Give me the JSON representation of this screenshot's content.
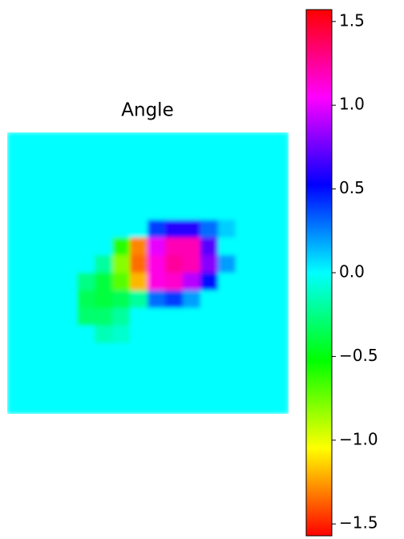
{
  "chart_data": {
    "type": "heatmap",
    "title": "Angle",
    "colormap": "hsv",
    "clim": [
      -1.5708,
      1.5708
    ],
    "cticks": [
      {
        "value": -1.5,
        "label": "−1.5"
      },
      {
        "value": -1.0,
        "label": "−1.0"
      },
      {
        "value": -0.5,
        "label": "−0.5"
      },
      {
        "value": 0.0,
        "label": "0.0"
      },
      {
        "value": 0.5,
        "label": "0.5"
      },
      {
        "value": 1.0,
        "label": "1.0"
      },
      {
        "value": 1.5,
        "label": "1.5"
      }
    ],
    "values": [
      [
        0,
        0,
        0,
        0,
        0,
        0,
        0,
        0,
        0,
        0,
        0,
        0,
        0,
        0,
        0,
        0
      ],
      [
        0,
        0,
        0,
        0,
        0,
        0,
        0,
        0,
        0,
        0,
        0,
        0,
        0,
        0,
        0,
        0
      ],
      [
        0,
        0,
        0,
        0,
        0,
        0,
        0,
        0,
        0,
        0,
        0,
        0,
        0,
        0,
        0,
        0
      ],
      [
        0,
        0,
        0,
        0,
        0,
        0,
        0,
        0,
        0,
        0,
        0,
        0,
        0,
        0,
        0,
        0
      ],
      [
        0,
        0,
        0,
        0,
        0,
        0,
        0,
        0,
        0,
        0,
        0,
        0,
        0,
        0,
        0,
        0
      ],
      [
        0,
        0,
        0,
        0,
        0,
        0,
        0,
        0,
        0.4,
        0.6,
        0.6,
        0.3,
        0.1,
        0,
        0,
        0
      ],
      [
        0,
        0,
        0,
        0,
        0,
        0,
        -0.6,
        -1.3,
        1.0,
        1.2,
        1.2,
        0.7,
        0,
        0,
        0,
        0
      ],
      [
        0,
        0,
        0,
        0,
        0,
        -0.2,
        -0.8,
        -1.35,
        1.1,
        1.25,
        1.2,
        0.8,
        0.2,
        0,
        0,
        0
      ],
      [
        0,
        0,
        0,
        0,
        -0.25,
        -0.4,
        -0.7,
        -1.2,
        1.1,
        1.15,
        0.9,
        0.5,
        0,
        0,
        0,
        0
      ],
      [
        0,
        0,
        0,
        0,
        -0.35,
        -0.4,
        -0.35,
        -0.2,
        0.3,
        0.4,
        0.2,
        0,
        0,
        0,
        0,
        0
      ],
      [
        0,
        0,
        0,
        0,
        -0.3,
        -0.3,
        -0.2,
        0,
        0,
        0,
        0,
        0,
        0,
        0,
        0,
        0
      ],
      [
        0,
        0,
        0,
        0,
        0,
        -0.15,
        -0.1,
        0,
        0,
        0,
        0,
        0,
        0,
        0,
        0,
        0
      ],
      [
        0,
        0,
        0,
        0,
        0,
        0,
        0,
        0,
        0,
        0,
        0,
        0,
        0,
        0,
        0,
        0
      ],
      [
        0,
        0,
        0,
        0,
        0,
        0,
        0,
        0,
        0,
        0,
        0,
        0,
        0,
        0,
        0,
        0
      ],
      [
        0,
        0,
        0,
        0,
        0,
        0,
        0,
        0,
        0,
        0,
        0,
        0,
        0,
        0,
        0,
        0
      ],
      [
        0,
        0,
        0,
        0,
        0,
        0,
        0,
        0,
        0,
        0,
        0,
        0,
        0,
        0,
        0,
        0
      ]
    ]
  }
}
